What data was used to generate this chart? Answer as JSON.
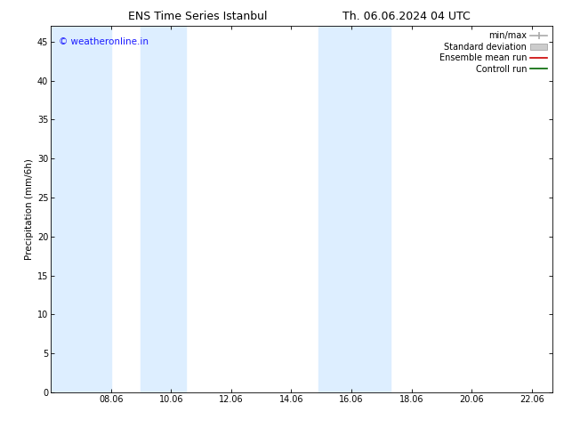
{
  "title_left": "ENS Time Series Istanbul",
  "title_right": "Th. 06.06.2024 04 UTC",
  "ylabel": "Precipitation (mm/6h)",
  "ylim": [
    0,
    47
  ],
  "yticks": [
    0,
    5,
    10,
    15,
    20,
    25,
    30,
    35,
    40,
    45
  ],
  "xlim_start": 6.0,
  "xlim_end": 22.7,
  "xtick_labels": [
    "08.06",
    "10.06",
    "12.06",
    "14.06",
    "16.06",
    "18.06",
    "20.06",
    "22.06"
  ],
  "xtick_positions": [
    8.0,
    10.0,
    12.0,
    14.0,
    16.0,
    18.0,
    20.0,
    22.0
  ],
  "shaded_bands": [
    {
      "x_start": 6.0,
      "x_end": 8.0
    },
    {
      "x_start": 9.0,
      "x_end": 10.5
    },
    {
      "x_start": 14.9,
      "x_end": 16.2
    },
    {
      "x_start": 16.2,
      "x_end": 17.3
    }
  ],
  "band_color": "#ddeeff",
  "watermark": "© weatheronline.in",
  "watermark_color": "#1a1aff",
  "background_color": "#ffffff",
  "plot_bg_color": "#ffffff",
  "title_fontsize": 9,
  "tick_fontsize": 7,
  "ylabel_fontsize": 7.5,
  "legend_fontsize": 7,
  "watermark_fontsize": 7.5
}
